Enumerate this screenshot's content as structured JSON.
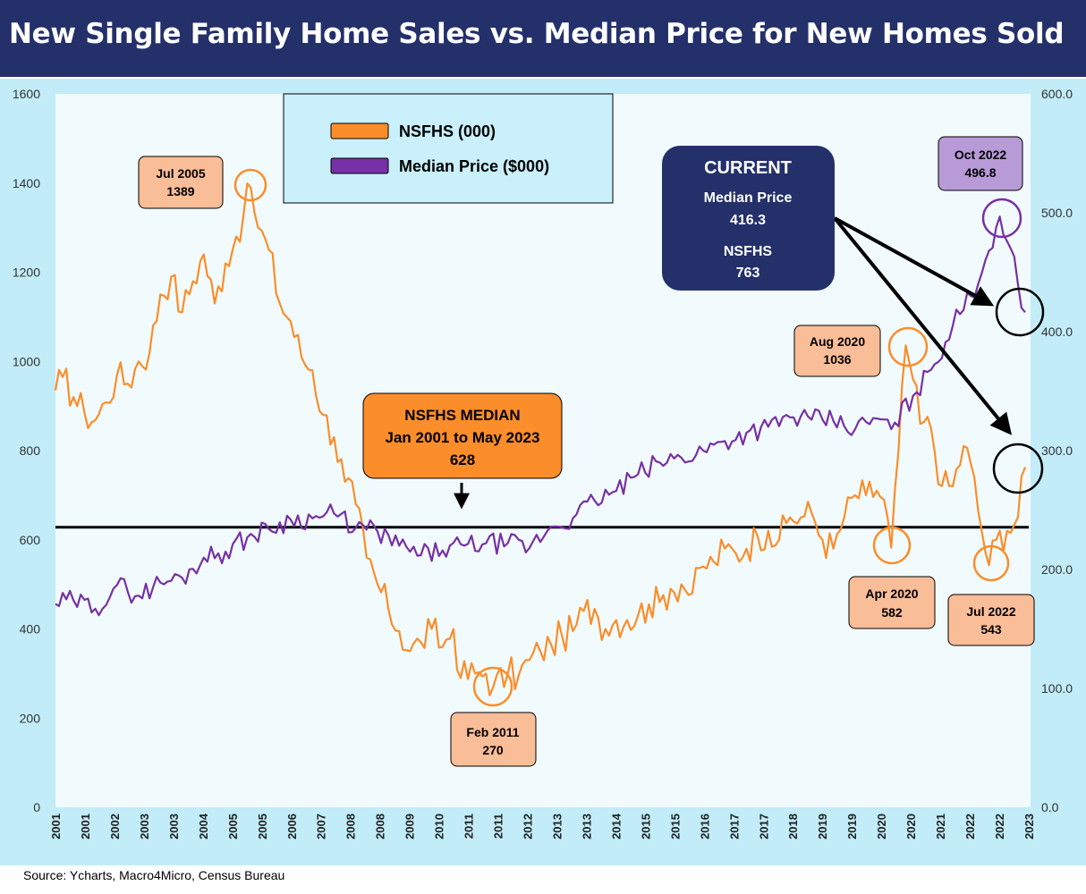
{
  "title": "New Single Family Home Sales vs. Median Price for New Homes Sold",
  "source": "Source: Ycharts, Macro4Micro, Census Bureau",
  "colors": {
    "header_bg": "#23306a",
    "plot_bg": "#f1fbfd",
    "outer_bg": "#c2ecf8",
    "nsfhs": "#fb8d2a",
    "median_price": "#7730a6",
    "note_box": "#f9bd98",
    "price_note_box": "#b79ad6",
    "median_box": "#fb8d2a",
    "current_box": "#23306a"
  },
  "chart_data": {
    "type": "line",
    "x_ticks": [
      "2001",
      "2001",
      "2002",
      "2003",
      "2003",
      "2004",
      "2005",
      "2005",
      "2006",
      "2007",
      "2008",
      "2008",
      "2009",
      "2010",
      "2011",
      "2011",
      "2012",
      "2013",
      "2013",
      "2014",
      "2015",
      "2015",
      "2016",
      "2017",
      "2017",
      "2018",
      "2019",
      "2019",
      "2020",
      "2020",
      "2021",
      "2022",
      "2022",
      "2023"
    ],
    "y_left": {
      "min": 0,
      "max": 1600,
      "ticks": [
        "0",
        "200",
        "400",
        "600",
        "800",
        "1000",
        "1200",
        "1400",
        "1600"
      ]
    },
    "y_right": {
      "min": 0,
      "max": 600,
      "ticks": [
        "0.0",
        "100.0",
        "200.0",
        "300.0",
        "400.0",
        "500.0",
        "600.0"
      ]
    },
    "grid": false,
    "legend_position": "top-center",
    "legend": [
      "NSFHS (000)",
      "Median Price ($000)"
    ],
    "reference_line": {
      "axis": "left",
      "value": 628
    },
    "series": [
      {
        "name": "NSFHS (000)",
        "axis": "left",
        "color": "#fb8d2a",
        "points": [
          [
            "2001-01",
            935
          ],
          [
            "2001-03",
            965
          ],
          [
            "2001-06",
            920
          ],
          [
            "2001-09",
            885
          ],
          [
            "2001-12",
            868
          ],
          [
            "2002-03",
            908
          ],
          [
            "2002-06",
            970
          ],
          [
            "2002-09",
            950
          ],
          [
            "2002-12",
            1000
          ],
          [
            "2003-03",
            1020
          ],
          [
            "2003-06",
            1150
          ],
          [
            "2003-09",
            1190
          ],
          [
            "2003-12",
            1110
          ],
          [
            "2004-03",
            1180
          ],
          [
            "2004-06",
            1240
          ],
          [
            "2004-09",
            1130
          ],
          [
            "2004-12",
            1220
          ],
          [
            "2005-03",
            1280
          ],
          [
            "2005-05",
            1330
          ],
          [
            "2005-07",
            1389
          ],
          [
            "2005-09",
            1300
          ],
          [
            "2005-12",
            1250
          ],
          [
            "2006-03",
            1130
          ],
          [
            "2006-06",
            1090
          ],
          [
            "2006-09",
            1010
          ],
          [
            "2006-12",
            980
          ],
          [
            "2007-03",
            880
          ],
          [
            "2007-06",
            830
          ],
          [
            "2007-09",
            730
          ],
          [
            "2007-12",
            680
          ],
          [
            "2008-03",
            560
          ],
          [
            "2008-06",
            500
          ],
          [
            "2008-09",
            445
          ],
          [
            "2008-12",
            395
          ],
          [
            "2009-03",
            350
          ],
          [
            "2009-06",
            370
          ],
          [
            "2009-09",
            400
          ],
          [
            "2009-12",
            360
          ],
          [
            "2010-03",
            400
          ],
          [
            "2010-05",
            290
          ],
          [
            "2010-09",
            300
          ],
          [
            "2010-12",
            300
          ],
          [
            "2011-02",
            270
          ],
          [
            "2011-06",
            300
          ],
          [
            "2011-09",
            295
          ],
          [
            "2011-12",
            330
          ],
          [
            "2012-03",
            350
          ],
          [
            "2012-06",
            365
          ],
          [
            "2012-09",
            385
          ],
          [
            "2012-12",
            395
          ],
          [
            "2013-03",
            440
          ],
          [
            "2013-06",
            445
          ],
          [
            "2013-09",
            400
          ],
          [
            "2013-12",
            420
          ],
          [
            "2014-03",
            420
          ],
          [
            "2014-06",
            430
          ],
          [
            "2014-09",
            455
          ],
          [
            "2014-12",
            460
          ],
          [
            "2015-03",
            490
          ],
          [
            "2015-06",
            500
          ],
          [
            "2015-09",
            480
          ],
          [
            "2015-12",
            540
          ],
          [
            "2016-03",
            550
          ],
          [
            "2016-06",
            580
          ],
          [
            "2016-09",
            570
          ],
          [
            "2016-12",
            580
          ],
          [
            "2017-03",
            610
          ],
          [
            "2017-06",
            620
          ],
          [
            "2017-09",
            600
          ],
          [
            "2017-12",
            650
          ],
          [
            "2018-03",
            650
          ],
          [
            "2018-06",
            660
          ],
          [
            "2018-09",
            600
          ],
          [
            "2018-12",
            580
          ],
          [
            "2019-03",
            650
          ],
          [
            "2019-06",
            700
          ],
          [
            "2019-09",
            700
          ],
          [
            "2019-12",
            710
          ],
          [
            "2020-02",
            690
          ],
          [
            "2020-04",
            582
          ],
          [
            "2020-06",
            800
          ],
          [
            "2020-08",
            1036
          ],
          [
            "2020-10",
            960
          ],
          [
            "2020-12",
            860
          ],
          [
            "2021-03",
            850
          ],
          [
            "2021-06",
            720
          ],
          [
            "2021-09",
            720
          ],
          [
            "2021-12",
            810
          ],
          [
            "2022-02",
            770
          ],
          [
            "2022-05",
            620
          ],
          [
            "2022-07",
            543
          ],
          [
            "2022-09",
            600
          ],
          [
            "2022-12",
            620
          ],
          [
            "2023-03",
            650
          ],
          [
            "2023-05",
            763
          ]
        ]
      },
      {
        "name": "Median Price ($000)",
        "axis": "right",
        "color": "#7730a6",
        "points": [
          [
            "2001-01",
            171
          ],
          [
            "2001-06",
            174
          ],
          [
            "2001-12",
            167
          ],
          [
            "2002-06",
            187
          ],
          [
            "2002-12",
            178
          ],
          [
            "2003-06",
            189
          ],
          [
            "2003-12",
            193
          ],
          [
            "2004-06",
            210
          ],
          [
            "2004-12",
            215
          ],
          [
            "2005-06",
            227
          ],
          [
            "2005-12",
            234
          ],
          [
            "2006-06",
            242
          ],
          [
            "2006-12",
            243
          ],
          [
            "2007-06",
            247
          ],
          [
            "2007-12",
            235
          ],
          [
            "2008-06",
            232
          ],
          [
            "2008-12",
            220
          ],
          [
            "2009-06",
            212
          ],
          [
            "2009-12",
            216
          ],
          [
            "2010-06",
            220
          ],
          [
            "2010-12",
            222
          ],
          [
            "2011-06",
            222
          ],
          [
            "2011-12",
            218
          ],
          [
            "2012-06",
            236
          ],
          [
            "2012-12",
            243
          ],
          [
            "2013-06",
            258
          ],
          [
            "2013-12",
            266
          ],
          [
            "2014-06",
            280
          ],
          [
            "2014-12",
            290
          ],
          [
            "2015-06",
            294
          ],
          [
            "2015-12",
            300
          ],
          [
            "2016-06",
            308
          ],
          [
            "2016-12",
            315
          ],
          [
            "2017-06",
            320
          ],
          [
            "2017-12",
            328
          ],
          [
            "2018-06",
            326
          ],
          [
            "2018-12",
            325
          ],
          [
            "2019-06",
            318
          ],
          [
            "2019-12",
            327
          ],
          [
            "2020-04",
            318
          ],
          [
            "2020-10",
            346
          ],
          [
            "2021-03",
            368
          ],
          [
            "2021-09",
            405
          ],
          [
            "2022-02",
            430
          ],
          [
            "2022-06",
            460
          ],
          [
            "2022-10",
            496.8
          ],
          [
            "2023-01",
            470
          ],
          [
            "2023-03",
            440
          ],
          [
            "2023-04",
            420
          ],
          [
            "2023-05",
            416.3
          ]
        ]
      }
    ],
    "annotations": [
      {
        "title": "Jul 2005",
        "value": "1389"
      },
      {
        "title": "Feb 2011",
        "value": "270"
      },
      {
        "title": "Aug 2020",
        "value": "1036"
      },
      {
        "title": "Apr 2020",
        "value": "582"
      },
      {
        "title": "Jul 2022",
        "value": "543"
      },
      {
        "title": "Oct 2022",
        "value": "496.8"
      }
    ],
    "median_box": {
      "line1": "NSFHS MEDIAN",
      "line2": "Jan 2001 to May 2023",
      "line3": "628"
    },
    "current_box": {
      "heading": "CURRENT",
      "price_label": "Median Price",
      "price_value": "416.3",
      "sales_label": "NSFHS",
      "sales_value": "763"
    }
  }
}
